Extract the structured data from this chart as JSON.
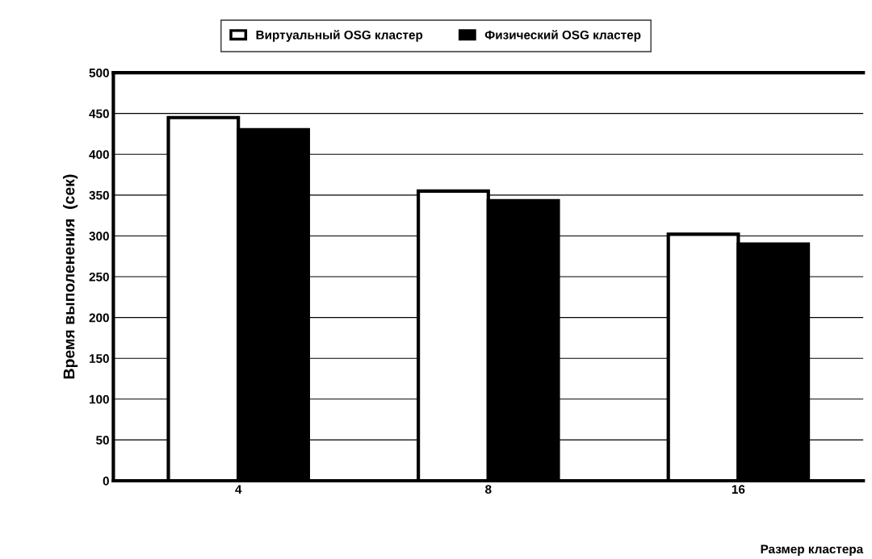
{
  "chart_data": {
    "type": "bar",
    "xlabel": "Размер кластера",
    "ylabel": "Время выполенения  (сек)",
    "categories": [
      "4",
      "8",
      "16"
    ],
    "series": [
      {
        "name": "Виртуальный OSG кластер",
        "color": "#ffffff",
        "values": [
          445,
          355,
          302
        ]
      },
      {
        "name": "Физический OSG кластер",
        "color": "#000000",
        "values": [
          430,
          343,
          290
        ]
      }
    ],
    "ylim": [
      0,
      500
    ],
    "yticks": [
      0,
      50,
      100,
      150,
      200,
      250,
      300,
      350,
      400,
      450,
      500
    ],
    "grid": "y",
    "legend": "top"
  }
}
